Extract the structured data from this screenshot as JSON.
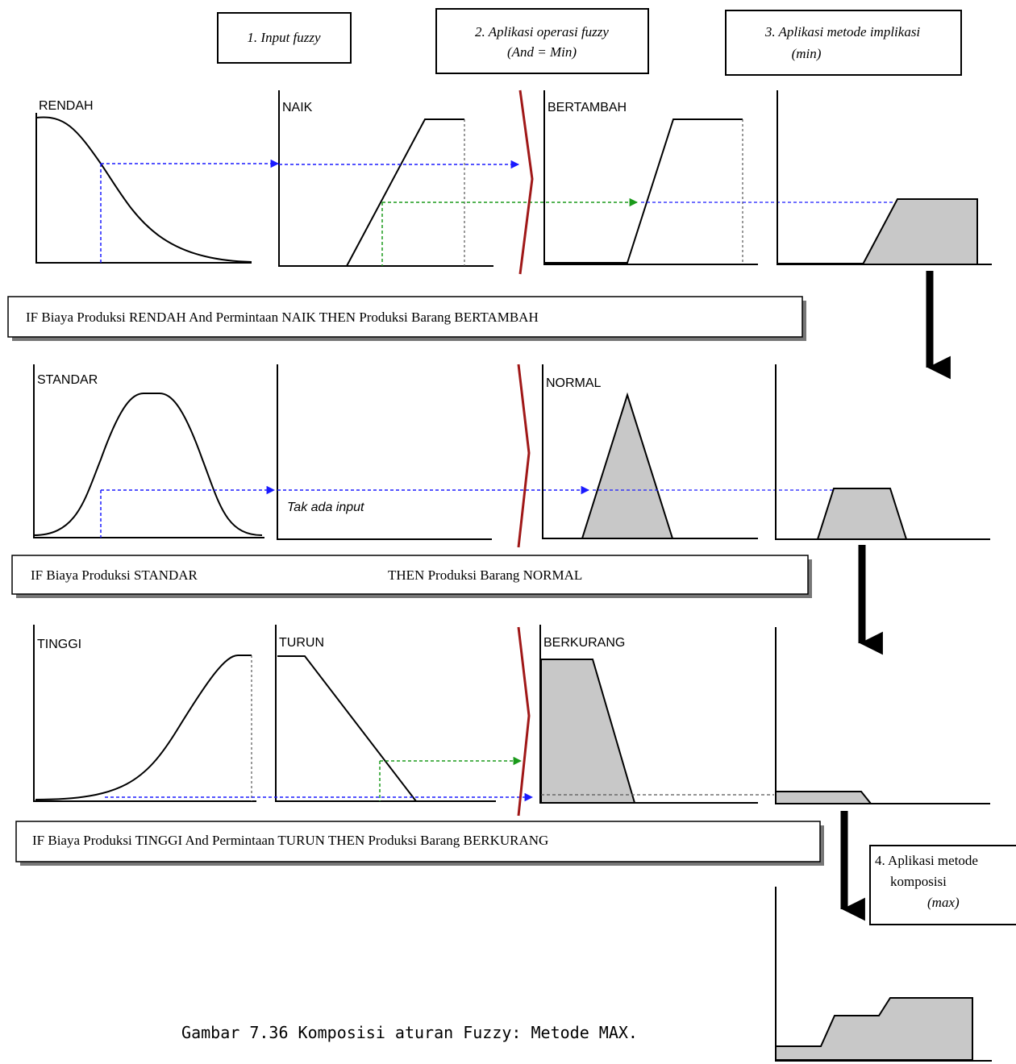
{
  "steps": {
    "step1": {
      "line1": "1. Input fuzzy"
    },
    "step2": {
      "line1": "2. Aplikasi operasi fuzzy",
      "line2": "(And = Min)"
    },
    "step3": {
      "line1": "3. Aplikasi metode implikasi",
      "line2": "(min)"
    },
    "step4": {
      "line1": "4. Aplikasi  metode",
      "line2": "komposisi",
      "line3": "(max)"
    }
  },
  "rules": [
    {
      "text": "IF Biaya Produksi RENDAH And Permintaan NAIK  THEN Produksi Barang BERTAMBAH",
      "input1_label": "RENDAH",
      "input2_label": "NAIK",
      "output_label": "BERTAMBAH"
    },
    {
      "text_if": "IF Biaya Produksi STANDAR",
      "text_then": "THEN Produksi Barang NORMAL",
      "input1_label": "STANDAR",
      "input2_note": "Tak ada input",
      "output_label": "NORMAL"
    },
    {
      "text": "IF Biaya Produksi TINGGI And Permintaan TURUN  THEN Produksi Barang BERKURANG",
      "input1_label": "TINGGI",
      "input2_label": "TURUN",
      "output_label": "BERKURANG"
    }
  ],
  "caption": "Gambar 7.36 Komposisi aturan Fuzzy: Metode MAX.",
  "colors": {
    "blue_guide": "#1a1aff",
    "green_guide": "#1a9a1a",
    "red_bracket": "#a01818",
    "fill_gray": "#c8c8c8",
    "axis": "#000000"
  }
}
